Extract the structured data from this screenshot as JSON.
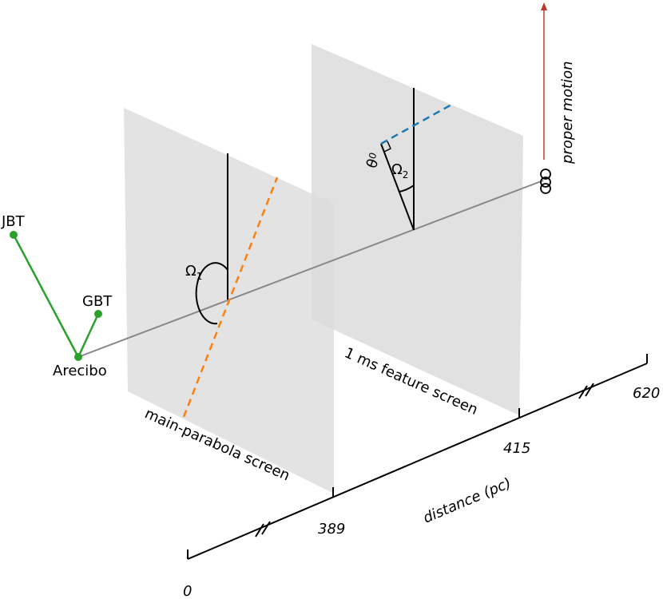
{
  "telescopes": {
    "jbt": "JBT",
    "gbt": "GBT",
    "arecibo": "Arecibo"
  },
  "screens": [
    {
      "label": "main-parabola screen",
      "angle": {
        "symbol": "Ω",
        "subscript": "1"
      }
    },
    {
      "label": "1 ms feature screen",
      "angle": {
        "symbol": "Ω",
        "subscript": "2"
      },
      "offset_angle": {
        "symbol": "θ",
        "subscript": "0"
      }
    }
  ],
  "pulsar_motion": "proper motion",
  "axis": {
    "label": "distance (pc)",
    "ticks": [
      "0",
      "389",
      "415",
      "620"
    ]
  }
}
